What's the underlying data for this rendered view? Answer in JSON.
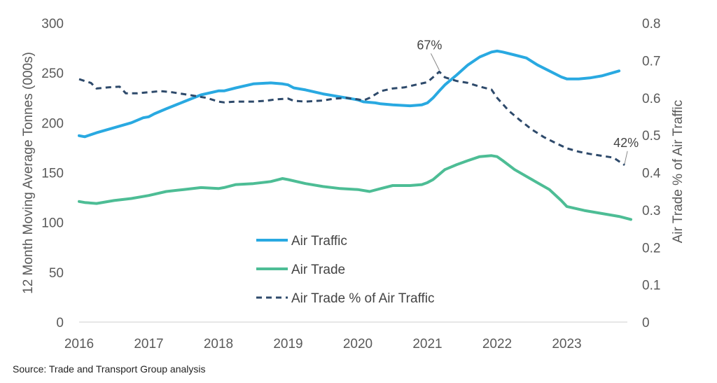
{
  "chart_data": {
    "type": "line",
    "xlim": [
      2016.0,
      2024.0
    ],
    "x_ticks": [
      "2016",
      "2017",
      "2018",
      "2019",
      "2020",
      "2021",
      "2022",
      "2023"
    ],
    "ylabel": "12 Month Moving Average Tonnes (000s)",
    "ylim": [
      0,
      300
    ],
    "y_ticks": [
      "0",
      "50",
      "100",
      "150",
      "200",
      "250",
      "300"
    ],
    "y2label": "Air Trade % of Air Traffic",
    "y2lim": [
      0,
      0.8
    ],
    "y2_ticks": [
      "0",
      "0.1",
      "0.2",
      "0.3",
      "0.4",
      "0.5",
      "0.6",
      "0.7",
      "0.8"
    ],
    "grid": false,
    "legend_position": "center",
    "series": [
      {
        "name": "Air Traffic",
        "axis": "left",
        "color": "#29a9e1",
        "style": "solid",
        "x": [
          2016.0,
          2016.08,
          2016.25,
          2016.5,
          2016.75,
          2016.92,
          2017.0,
          2017.08,
          2017.25,
          2017.5,
          2017.75,
          2018.0,
          2018.08,
          2018.25,
          2018.5,
          2018.75,
          2018.92,
          2019.0,
          2019.08,
          2019.25,
          2019.5,
          2019.75,
          2020.0,
          2020.08,
          2020.25,
          2020.33,
          2020.5,
          2020.75,
          2020.92,
          2021.0,
          2021.08,
          2021.17,
          2021.25,
          2021.42,
          2021.58,
          2021.75,
          2021.92,
          2022.0,
          2022.08,
          2022.25,
          2022.42,
          2022.58,
          2022.75,
          2022.92,
          2023.0,
          2023.17,
          2023.33,
          2023.5,
          2023.75
        ],
        "values": [
          187,
          186,
          190,
          195,
          200,
          205,
          206,
          209,
          214,
          221,
          228,
          232,
          232,
          235,
          239,
          240,
          239,
          238,
          235,
          233,
          229,
          226,
          223,
          221,
          220,
          219,
          218,
          217,
          218,
          220,
          225,
          232,
          238,
          248,
          258,
          266,
          271,
          272,
          271,
          268,
          265,
          258,
          252,
          246,
          244,
          244,
          245,
          247,
          252
        ]
      },
      {
        "name": "Air Trade",
        "axis": "left",
        "color": "#4dbd95",
        "style": "solid",
        "x": [
          2016.0,
          2016.08,
          2016.25,
          2016.5,
          2016.75,
          2017.0,
          2017.25,
          2017.5,
          2017.75,
          2018.0,
          2018.08,
          2018.25,
          2018.5,
          2018.75,
          2018.92,
          2019.0,
          2019.25,
          2019.5,
          2019.75,
          2020.0,
          2020.17,
          2020.33,
          2020.5,
          2020.75,
          2020.92,
          2021.0,
          2021.08,
          2021.25,
          2021.42,
          2021.58,
          2021.75,
          2021.92,
          2022.0,
          2022.08,
          2022.25,
          2022.5,
          2022.75,
          2022.92,
          2023.0,
          2023.25,
          2023.5,
          2023.75,
          2023.92
        ],
        "values": [
          121,
          120,
          119,
          122,
          124,
          127,
          131,
          133,
          135,
          134,
          135,
          138,
          139,
          141,
          144,
          143,
          139,
          136,
          134,
          133,
          131,
          134,
          137,
          137,
          138,
          140,
          143,
          153,
          158,
          162,
          166,
          167,
          166,
          162,
          153,
          143,
          133,
          122,
          116,
          112,
          109,
          106,
          103
        ]
      },
      {
        "name": "Air Trade % of Air Traffic",
        "axis": "right",
        "color": "#2e4a6b",
        "style": "dashed",
        "x": [
          2016.0,
          2016.08,
          2016.17,
          2016.25,
          2016.42,
          2016.58,
          2016.67,
          2016.83,
          2017.0,
          2017.17,
          2017.33,
          2017.5,
          2017.67,
          2017.83,
          2018.0,
          2018.08,
          2018.25,
          2018.5,
          2018.67,
          2018.83,
          2019.0,
          2019.08,
          2019.25,
          2019.5,
          2019.67,
          2019.83,
          2020.0,
          2020.08,
          2020.17,
          2020.33,
          2020.5,
          2020.67,
          2020.83,
          2021.0,
          2021.17,
          2021.25,
          2021.42,
          2021.58,
          2021.75,
          2021.92,
          2022.0,
          2022.17,
          2022.33,
          2022.5,
          2022.67,
          2022.83,
          2023.0,
          2023.17,
          2023.33,
          2023.5,
          2023.67,
          2023.83
        ],
        "values": [
          0.65,
          0.645,
          0.64,
          0.625,
          0.628,
          0.63,
          0.612,
          0.612,
          0.615,
          0.618,
          0.615,
          0.61,
          0.605,
          0.6,
          0.59,
          0.588,
          0.59,
          0.59,
          0.592,
          0.596,
          0.598,
          0.592,
          0.59,
          0.593,
          0.598,
          0.6,
          0.596,
          0.593,
          0.6,
          0.618,
          0.625,
          0.628,
          0.635,
          0.642,
          0.67,
          0.655,
          0.645,
          0.64,
          0.63,
          0.622,
          0.6,
          0.565,
          0.54,
          0.515,
          0.495,
          0.48,
          0.465,
          0.456,
          0.45,
          0.445,
          0.44,
          0.42
        ]
      }
    ],
    "annotations": [
      {
        "text": "67%",
        "x": 2021.17,
        "y": 0.67,
        "axis": "right"
      },
      {
        "text": "42%",
        "x": 2023.83,
        "y": 0.42,
        "axis": "right"
      }
    ]
  },
  "source_note": "Source: Trade and Transport Group analysis"
}
